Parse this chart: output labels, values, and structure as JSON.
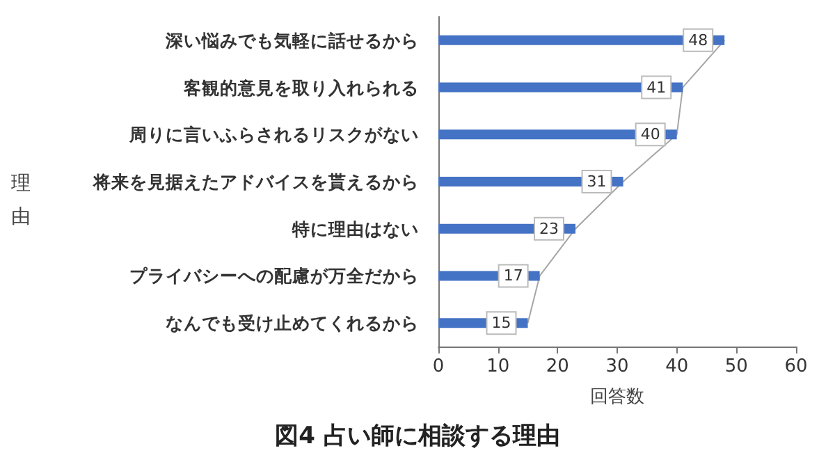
{
  "chart_data": {
    "type": "bar",
    "orientation": "horizontal",
    "title": "図4 占い師に相談する理由",
    "xlabel": "回答数",
    "ylabel": "理由",
    "categories": [
      "深い悩みでも気軽に話せるから",
      "客観的意見を取り入れられる",
      "周りに言いふらされるリスクがない",
      "将来を見据えたアドバイスを貰えるから",
      "特に理由はない",
      "プライバシーへの配慮が万全だから",
      "なんでも受け止めてくれるから"
    ],
    "series": [
      {
        "color": "#4472c4",
        "values": [
          48,
          41,
          40,
          31,
          23,
          17,
          15
        ],
        "value_labels": [
          "48",
          "41",
          "40",
          "31",
          "23",
          "17",
          "15"
        ]
      },
      {
        "type": "line",
        "color": "#a6a6a6",
        "values": [
          48,
          41,
          40,
          31,
          23,
          17,
          15
        ]
      }
    ],
    "xlim": [
      0,
      60
    ],
    "xticks": [
      0,
      10,
      20,
      30,
      40,
      50,
      60
    ],
    "grid": false,
    "marker": "none",
    "line_style": "solid"
  }
}
